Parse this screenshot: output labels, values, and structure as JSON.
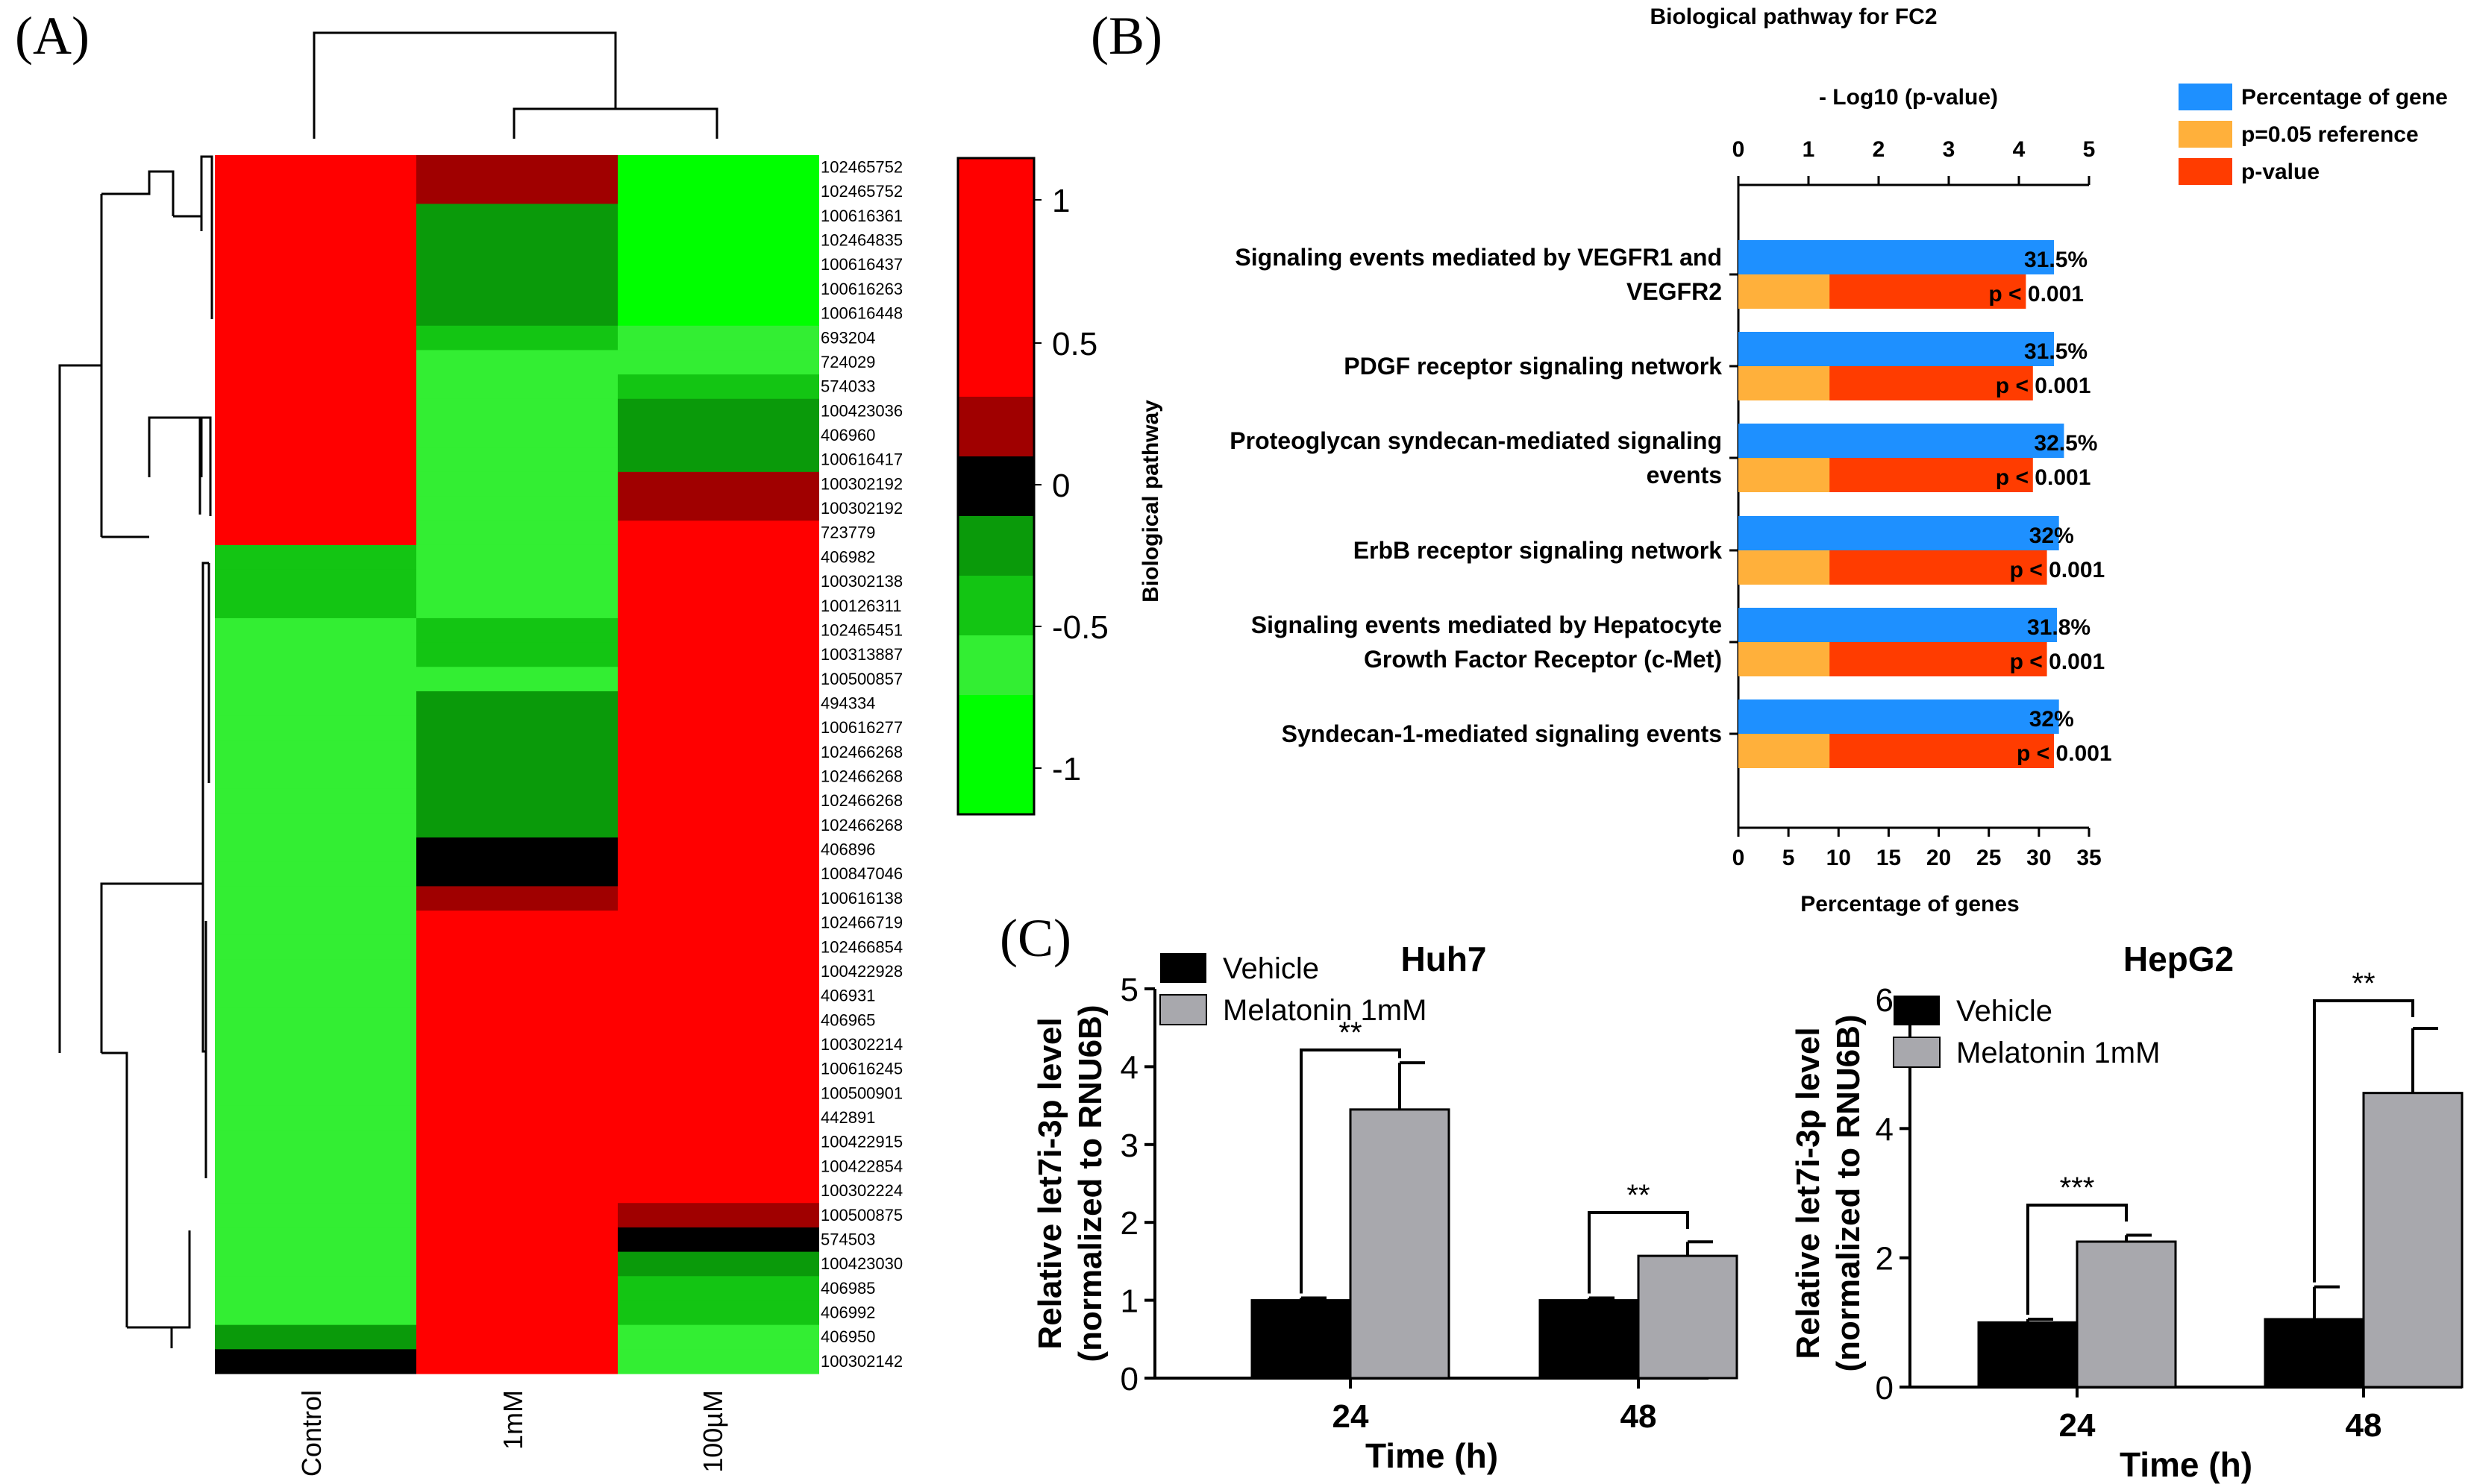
{
  "panels": {
    "a": "(A)",
    "b": "(B)",
    "c": "(C)"
  },
  "colors": {
    "red": "#ff0000",
    "dark_red": "#a00000",
    "black": "#000000",
    "dark_green": "#0a9a0a",
    "mid_green": "#13c513",
    "light_green": "#33ee33",
    "bright_green": "#00ff00",
    "blue": "#1e90ff",
    "orange": "#ffb03b",
    "orangered": "#ff3c00",
    "bar_black": "#000000",
    "bar_gray": "#a8a8ad"
  },
  "heatmap": {
    "columns": [
      "Control",
      "1mM",
      "100µM"
    ],
    "rows": [
      {
        "label": "102465752",
        "cells": [
          "red",
          "dark_red",
          "bright_green"
        ]
      },
      {
        "label": "102465752",
        "cells": [
          "red",
          "dark_red",
          "bright_green"
        ]
      },
      {
        "label": "100616361",
        "cells": [
          "red",
          "dark_green",
          "bright_green"
        ]
      },
      {
        "label": "102464835",
        "cells": [
          "red",
          "dark_green",
          "bright_green"
        ]
      },
      {
        "label": "100616437",
        "cells": [
          "red",
          "dark_green",
          "bright_green"
        ]
      },
      {
        "label": "100616263",
        "cells": [
          "red",
          "dark_green",
          "bright_green"
        ]
      },
      {
        "label": "100616448",
        "cells": [
          "red",
          "dark_green",
          "bright_green"
        ]
      },
      {
        "label": "693204",
        "cells": [
          "red",
          "mid_green",
          "light_green"
        ]
      },
      {
        "label": "724029",
        "cells": [
          "red",
          "light_green",
          "light_green"
        ]
      },
      {
        "label": "574033",
        "cells": [
          "red",
          "light_green",
          "mid_green"
        ]
      },
      {
        "label": "100423036",
        "cells": [
          "red",
          "light_green",
          "dark_green"
        ]
      },
      {
        "label": "406960",
        "cells": [
          "red",
          "light_green",
          "dark_green"
        ]
      },
      {
        "label": "100616417",
        "cells": [
          "red",
          "light_green",
          "dark_green"
        ]
      },
      {
        "label": "100302192",
        "cells": [
          "red",
          "light_green",
          "dark_red"
        ]
      },
      {
        "label": "100302192",
        "cells": [
          "red",
          "light_green",
          "dark_red"
        ]
      },
      {
        "label": "723779",
        "cells": [
          "red",
          "light_green",
          "red"
        ]
      },
      {
        "label": "406982",
        "cells": [
          "mid_green",
          "light_green",
          "red"
        ]
      },
      {
        "label": "100302138",
        "cells": [
          "mid_green",
          "light_green",
          "red"
        ]
      },
      {
        "label": "100126311",
        "cells": [
          "mid_green",
          "light_green",
          "red"
        ]
      },
      {
        "label": "102465451",
        "cells": [
          "light_green",
          "mid_green",
          "red"
        ]
      },
      {
        "label": "100313887",
        "cells": [
          "light_green",
          "mid_green",
          "red"
        ]
      },
      {
        "label": "100500857",
        "cells": [
          "light_green",
          "light_green",
          "red"
        ]
      },
      {
        "label": "494334",
        "cells": [
          "light_green",
          "dark_green",
          "red"
        ]
      },
      {
        "label": "100616277",
        "cells": [
          "light_green",
          "dark_green",
          "red"
        ]
      },
      {
        "label": "102466268",
        "cells": [
          "light_green",
          "dark_green",
          "red"
        ]
      },
      {
        "label": "102466268",
        "cells": [
          "light_green",
          "dark_green",
          "red"
        ]
      },
      {
        "label": "102466268",
        "cells": [
          "light_green",
          "dark_green",
          "red"
        ]
      },
      {
        "label": "102466268",
        "cells": [
          "light_green",
          "dark_green",
          "red"
        ]
      },
      {
        "label": "406896",
        "cells": [
          "light_green",
          "black",
          "red"
        ]
      },
      {
        "label": "100847046",
        "cells": [
          "light_green",
          "black",
          "red"
        ]
      },
      {
        "label": "100616138",
        "cells": [
          "light_green",
          "dark_red",
          "red"
        ]
      },
      {
        "label": "102466719",
        "cells": [
          "light_green",
          "red",
          "red"
        ]
      },
      {
        "label": "102466854",
        "cells": [
          "light_green",
          "red",
          "red"
        ]
      },
      {
        "label": "100422928",
        "cells": [
          "light_green",
          "red",
          "red"
        ]
      },
      {
        "label": "406931",
        "cells": [
          "light_green",
          "red",
          "red"
        ]
      },
      {
        "label": "406965",
        "cells": [
          "light_green",
          "red",
          "red"
        ]
      },
      {
        "label": "100302214",
        "cells": [
          "light_green",
          "red",
          "red"
        ]
      },
      {
        "label": "100616245",
        "cells": [
          "light_green",
          "red",
          "red"
        ]
      },
      {
        "label": "100500901",
        "cells": [
          "light_green",
          "red",
          "red"
        ]
      },
      {
        "label": "442891",
        "cells": [
          "light_green",
          "red",
          "red"
        ]
      },
      {
        "label": "100422915",
        "cells": [
          "light_green",
          "red",
          "red"
        ]
      },
      {
        "label": "100422854",
        "cells": [
          "light_green",
          "red",
          "red"
        ]
      },
      {
        "label": "100302224",
        "cells": [
          "light_green",
          "red",
          "red"
        ]
      },
      {
        "label": "100500875",
        "cells": [
          "light_green",
          "red",
          "dark_red"
        ]
      },
      {
        "label": "574503",
        "cells": [
          "light_green",
          "red",
          "black"
        ]
      },
      {
        "label": "100423030",
        "cells": [
          "light_green",
          "red",
          "dark_green"
        ]
      },
      {
        "label": "406985",
        "cells": [
          "light_green",
          "red",
          "mid_green"
        ]
      },
      {
        "label": "406992",
        "cells": [
          "light_green",
          "red",
          "mid_green"
        ]
      },
      {
        "label": "406950",
        "cells": [
          "dark_green",
          "red",
          "light_green"
        ]
      },
      {
        "label": "100302142",
        "cells": [
          "black",
          "red",
          "light_green"
        ]
      }
    ],
    "colorbar": {
      "ticks": [
        "1",
        "0.5",
        "0",
        "-0.5",
        "-1"
      ],
      "segments": [
        "red",
        "red",
        "red",
        "red",
        "dark_red",
        "black",
        "dark_green",
        "mid_green",
        "light_green",
        "bright_green",
        "bright_green"
      ]
    }
  },
  "pathway_chart": {
    "title": "Biological pathway for FC2",
    "top_axis_label": "- Log10 (p-value)",
    "top_ticks": [
      "0",
      "1",
      "2",
      "3",
      "4",
      "5"
    ],
    "bottom_axis_label": "Percentage of genes",
    "bottom_ticks": [
      "0",
      "5",
      "10",
      "15",
      "20",
      "25",
      "30",
      "35"
    ],
    "ylabel": "Biological pathway",
    "legend": [
      "Percentage of gene",
      "p=0.05 reference",
      "p-value"
    ],
    "pvalue_text": "p < 0.001",
    "pathways": [
      {
        "line1": "Signaling events mediated by VEGFR1 and",
        "line2": "VEGFR2",
        "pct": 31.5,
        "pct_label": "31.5%",
        "log_p": 4.1
      },
      {
        "line1": "PDGF receptor signaling network",
        "line2": "",
        "pct": 31.5,
        "pct_label": "31.5%",
        "log_p": 4.2
      },
      {
        "line1": "Proteoglycan syndecan-mediated signaling",
        "line2": "events",
        "pct": 32.5,
        "pct_label": "32.5%",
        "log_p": 4.2
      },
      {
        "line1": "ErbB receptor signaling network",
        "line2": "",
        "pct": 32,
        "pct_label": "32%",
        "log_p": 4.4
      },
      {
        "line1": "Signaling events mediated by Hepatocyte",
        "line2": "Growth Factor Receptor (c-Met)",
        "pct": 31.8,
        "pct_label": "31.8%",
        "log_p": 4.4
      },
      {
        "line1": "Syndecan-1-mediated signaling events",
        "line2": "",
        "pct": 32,
        "pct_label": "32%",
        "log_p": 4.5
      }
    ],
    "reference_log_p": 1.3
  },
  "chart_data": [
    {
      "type": "bar",
      "title": "Huh7",
      "categories": [
        "24",
        "48"
      ],
      "series": [
        {
          "name": "Vehicle",
          "values": [
            1.0,
            1.0
          ],
          "errors": [
            0.03,
            0.03
          ]
        },
        {
          "name": "Melatonin 1mM",
          "values": [
            3.45,
            1.57
          ],
          "errors": [
            0.6,
            0.18
          ]
        }
      ],
      "significance": [
        "**",
        "**"
      ],
      "xlabel": "Time (h)",
      "ylabel_line1": "Relative let7i-3p  level",
      "ylabel_line2": "(normalized to RNU6B)",
      "ylim": [
        0,
        5
      ],
      "yticks": [
        "0",
        "1",
        "2",
        "3",
        "4",
        "5"
      ]
    },
    {
      "type": "bar",
      "title": "HepG2",
      "categories": [
        "24",
        "48"
      ],
      "series": [
        {
          "name": "Vehicle",
          "values": [
            1.0,
            1.05
          ],
          "errors": [
            0.05,
            0.5
          ]
        },
        {
          "name": "Melatonin 1mM",
          "values": [
            2.25,
            4.55
          ],
          "errors": [
            0.1,
            1.0
          ]
        }
      ],
      "significance": [
        "***",
        "**"
      ],
      "xlabel": "Time (h)",
      "ylabel_line1": "Relative let7i-3p  level",
      "ylabel_line2": "(normalized to RNU6B)",
      "ylim": [
        0,
        6
      ],
      "yticks": [
        "0",
        "2",
        "4",
        "6"
      ]
    }
  ]
}
